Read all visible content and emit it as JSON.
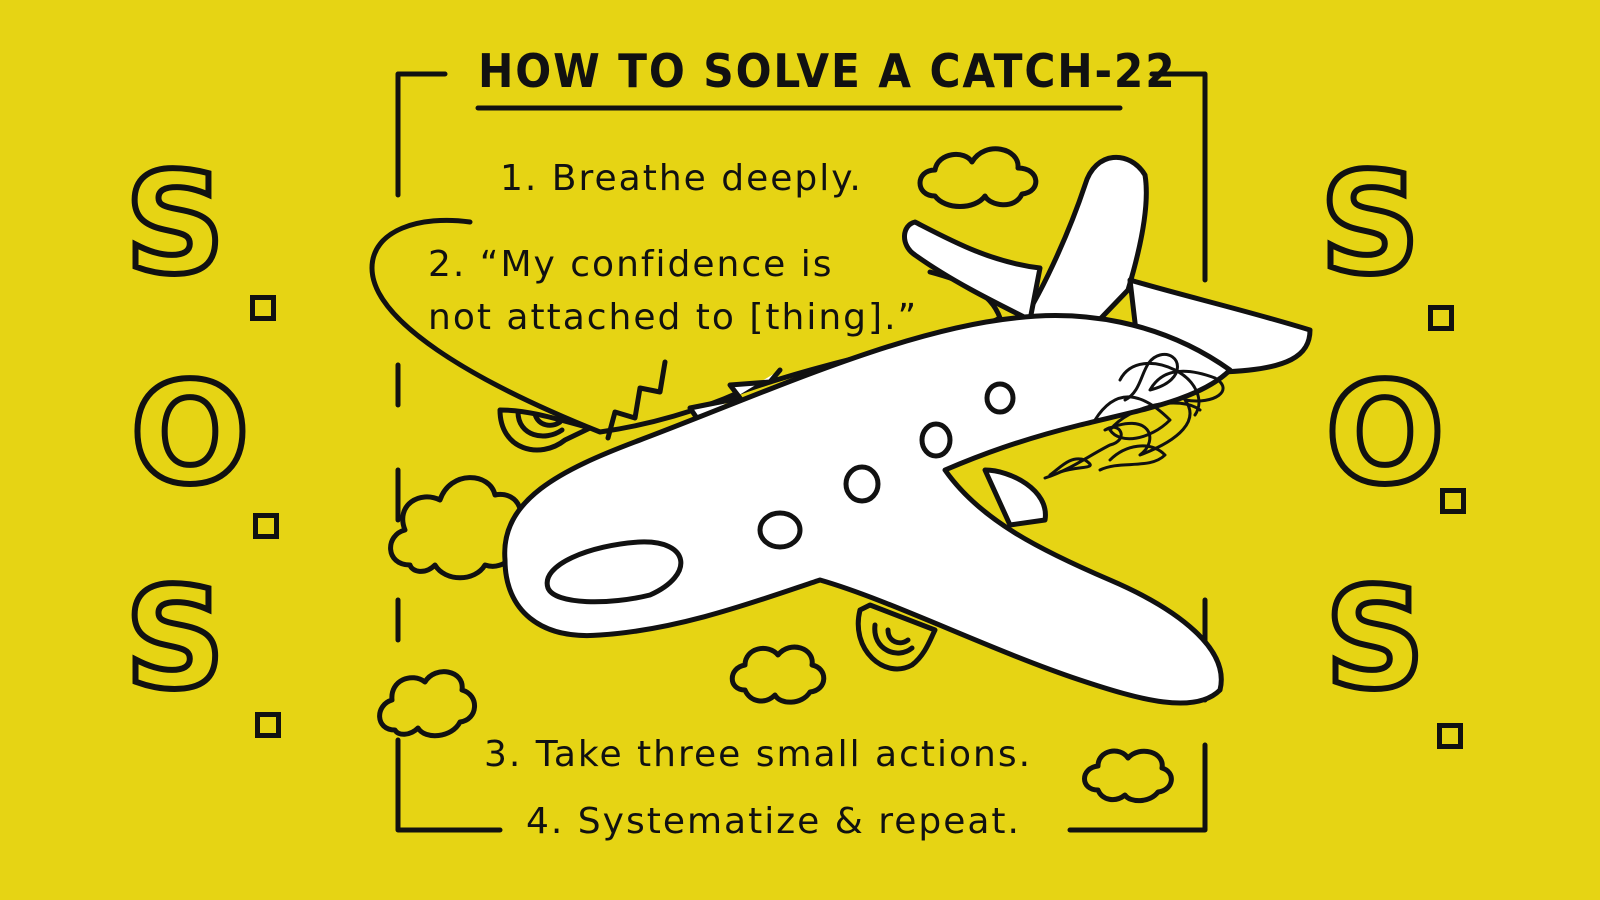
{
  "title": "HOW TO SOLVE A CATCH-22",
  "steps": [
    "1. Breathe deeply.",
    "2. “My confidence is",
    "not attached to [thing].”",
    "3. Take three small actions.",
    "4. Systematize & repeat."
  ],
  "sos_letters": [
    "S",
    "O",
    "S"
  ],
  "colors": {
    "background": "#E6D414",
    "ink": "#111111",
    "plane": "#FFFFFF"
  }
}
